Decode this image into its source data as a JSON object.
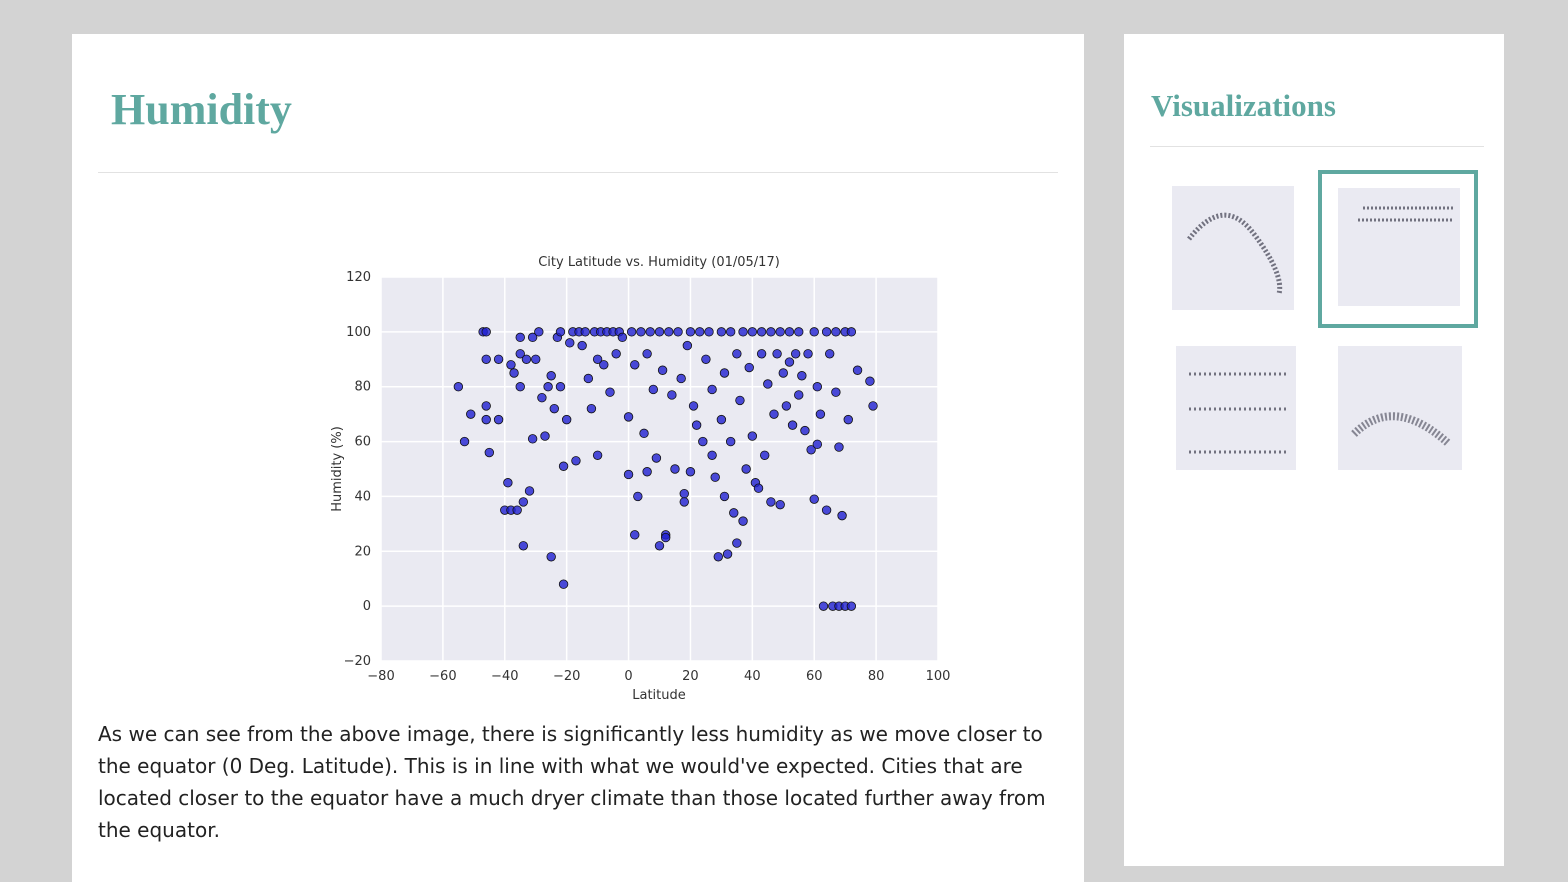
{
  "header": {
    "title": "Humidity"
  },
  "chart_data": {
    "type": "scatter",
    "title": "City Latitude vs. Humidity (01/05/17)",
    "x_label": "Latitude",
    "y_label": "Humidity (%)",
    "color": "#1f1fd0",
    "x": [
      -55,
      -53,
      -51,
      -47,
      -46,
      -46,
      -46,
      -46,
      -45,
      -42,
      -42,
      -40,
      -39,
      -38,
      -38,
      -37,
      -36,
      -35,
      -35,
      -35,
      -34,
      -34,
      -33,
      -32,
      -31,
      -31,
      -30,
      -29,
      -28,
      -27,
      -26,
      -25,
      -25,
      -24,
      -23,
      -22,
      -22,
      -21,
      -21,
      -20,
      -19,
      -18,
      -17,
      -16,
      -15,
      -14,
      -13,
      -12,
      -11,
      -10,
      -10,
      -9,
      -8,
      -7,
      -6,
      -5,
      -4,
      -3,
      -2,
      0,
      0,
      1,
      2,
      2,
      3,
      4,
      5,
      6,
      6,
      7,
      8,
      9,
      10,
      10,
      11,
      12,
      12,
      13,
      14,
      15,
      16,
      17,
      18,
      18,
      19,
      20,
      20,
      21,
      22,
      23,
      24,
      25,
      26,
      27,
      27,
      28,
      29,
      30,
      30,
      31,
      31,
      32,
      33,
      33,
      34,
      35,
      35,
      36,
      37,
      37,
      38,
      39,
      40,
      40,
      41,
      42,
      43,
      43,
      44,
      45,
      46,
      46,
      47,
      48,
      49,
      49,
      50,
      51,
      52,
      52,
      53,
      54,
      55,
      55,
      56,
      57,
      58,
      59,
      60,
      60,
      61,
      61,
      62,
      63,
      64,
      64,
      65,
      66,
      67,
      67,
      68,
      68,
      69,
      70,
      70,
      71,
      72,
      72,
      74,
      78,
      79
    ],
    "y": [
      80,
      60,
      70,
      100,
      100,
      90,
      73,
      68,
      56,
      90,
      68,
      35,
      45,
      88,
      35,
      85,
      35,
      98,
      92,
      80,
      38,
      22,
      90,
      42,
      98,
      61,
      90,
      100,
      76,
      62,
      80,
      18,
      84,
      72,
      98,
      100,
      80,
      51,
      8,
      68,
      96,
      100,
      53,
      100,
      95,
      100,
      83,
      72,
      100,
      90,
      55,
      100,
      88,
      100,
      78,
      100,
      92,
      100,
      98,
      69,
      48,
      100,
      88,
      26,
      40,
      100,
      63,
      92,
      49,
      100,
      79,
      54,
      100,
      22,
      86,
      26,
      25,
      100,
      77,
      50,
      100,
      83,
      41,
      38,
      95,
      100,
      49,
      73,
      66,
      100,
      60,
      90,
      100,
      79,
      55,
      47,
      18,
      100,
      68,
      85,
      40,
      19,
      100,
      60,
      34,
      92,
      23,
      75,
      100,
      31,
      50,
      87,
      100,
      62,
      45,
      43,
      100,
      92,
      55,
      81,
      100,
      38,
      70,
      92,
      100,
      37,
      85,
      73,
      100,
      89,
      66,
      92,
      100,
      77,
      84,
      64,
      92,
      57,
      100,
      39,
      80,
      59,
      70,
      0,
      100,
      35,
      92,
      0,
      100,
      78,
      0,
      58,
      33,
      0,
      100,
      68,
      0,
      100,
      86,
      82,
      73
    ],
    "xlim": [
      -80,
      100
    ],
    "xticks": [
      {
        "value": -80,
        "label": "−80"
      },
      {
        "value": -60,
        "label": "−60"
      },
      {
        "value": -40,
        "label": "−40"
      },
      {
        "value": -20,
        "label": "−20"
      },
      0,
      20,
      40,
      60,
      80,
      100
    ],
    "ylim": [
      -20,
      120
    ],
    "yticks": [
      {
        "value": -20,
        "label": "−20"
      },
      0,
      20,
      40,
      60,
      80,
      100,
      120
    ],
    "grid": true
  },
  "paragraph": "As we can see from the above image, there is significantly less humidity as we move closer to the equator (0 Deg. Latitude). This is in line with what we would've expected. Cities that are located closer to the equator have a much dryer climate than those located further away from the equator.",
  "sidebar": {
    "title": "Visualizations"
  }
}
